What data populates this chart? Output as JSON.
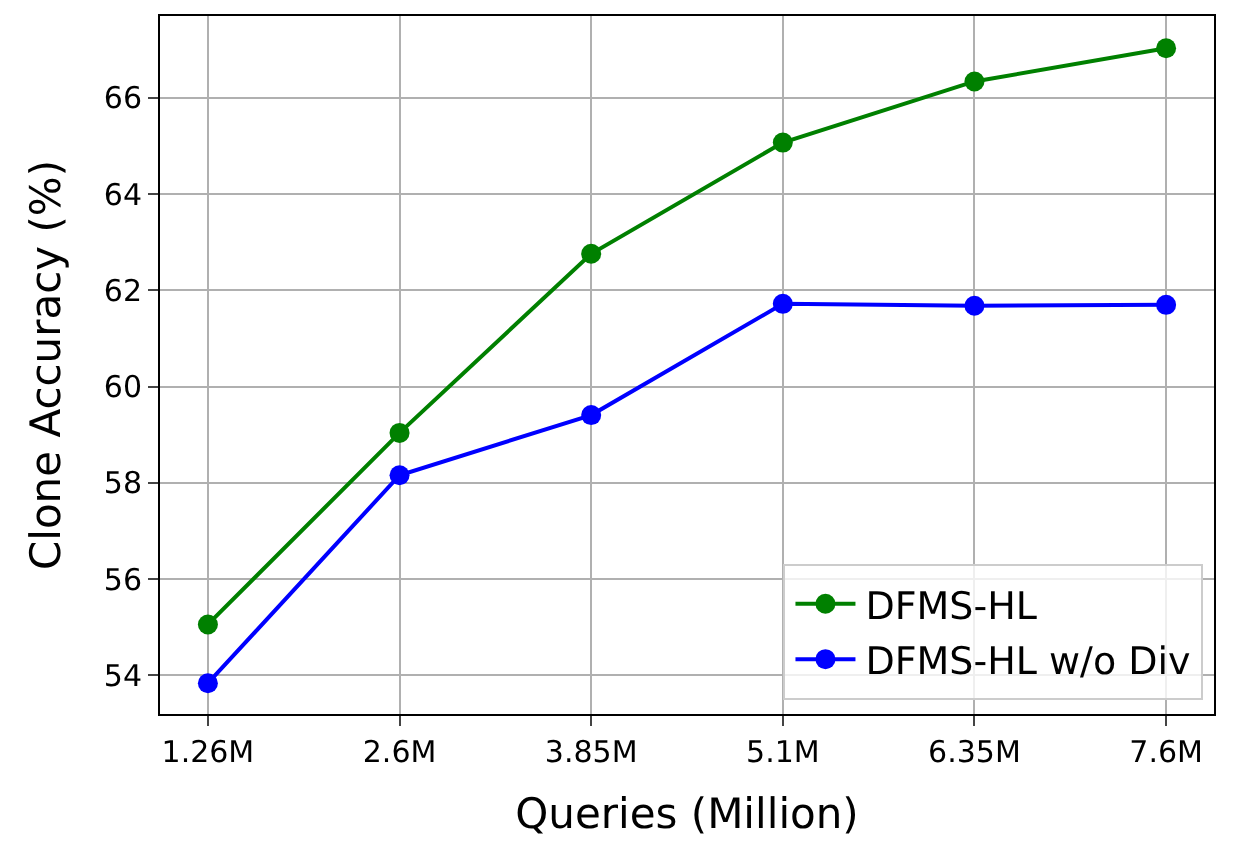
{
  "chart_data": {
    "type": "line",
    "xlabel": "Queries (Million)",
    "ylabel": "Clone Accuracy (%)",
    "categories": [
      "1.26M",
      "2.6M",
      "3.85M",
      "5.1M",
      "6.35M",
      "7.6M"
    ],
    "series": [
      {
        "name": "DFMS-HL",
        "color": "#008000",
        "values": [
          55.06,
          59.04,
          62.76,
          65.07,
          66.34,
          67.03
        ]
      },
      {
        "name": "DFMS-HL w/o Div",
        "color": "#0000ff",
        "values": [
          53.84,
          58.16,
          59.41,
          61.72,
          61.68,
          61.7
        ]
      }
    ],
    "ylim": [
      53.2,
      67.7
    ],
    "yticks": [
      54,
      56,
      58,
      60,
      62,
      64,
      66
    ],
    "grid": true,
    "legend": "bottom right",
    "marker": "circle",
    "line_style": "solid"
  }
}
